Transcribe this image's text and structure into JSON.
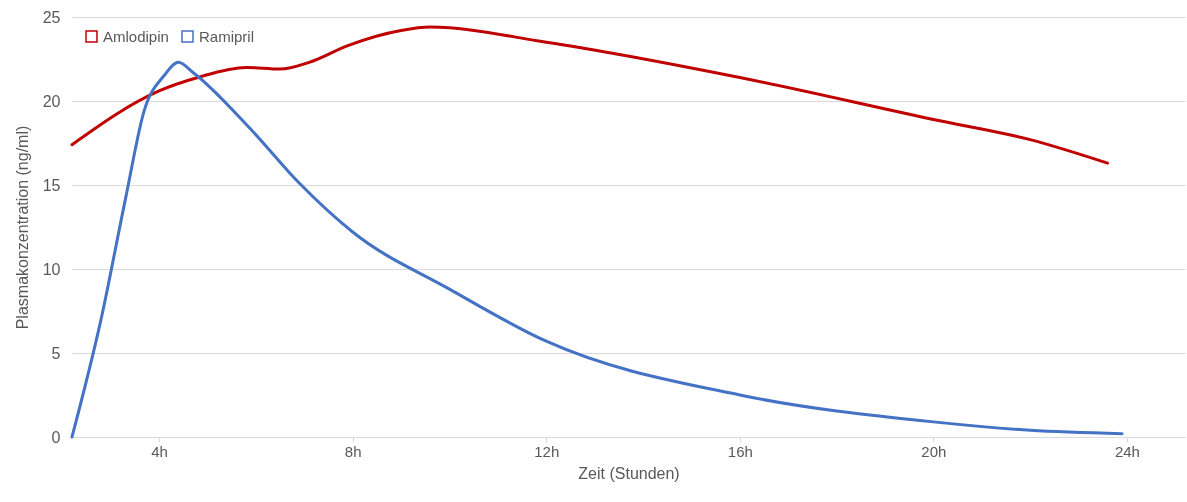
{
  "chart_data": {
    "type": "line",
    "xlabel": "Zeit (Stunden)",
    "ylabel": "Plasmakonzentration (ng/ml)",
    "xlim": [
      2.2,
      25.2
    ],
    "xticks": [
      {
        "value": 4,
        "label": "4h"
      },
      {
        "value": 8,
        "label": "8h"
      },
      {
        "value": 12,
        "label": "12h"
      },
      {
        "value": 16,
        "label": "16h"
      },
      {
        "value": 20,
        "label": "20h"
      },
      {
        "value": 24,
        "label": "24h"
      }
    ],
    "ylim": [
      0,
      25
    ],
    "yticks": [
      0,
      5,
      10,
      15,
      20,
      25
    ],
    "grid": "y",
    "legend": "top left",
    "series": [
      {
        "name": "Amlodipin",
        "color": "#c00000",
        "x": [
          2.2,
          4,
          4.8,
          5.8,
          6.5,
          7.1,
          7.9,
          9,
          9.6,
          12,
          16,
          20,
          22,
          23.6
        ],
        "values": [
          17.4,
          20.6,
          21.4,
          22,
          21.9,
          22.3,
          23.3,
          24.2,
          24.4,
          23.5,
          21.4,
          18.9,
          17.7,
          16.3
        ]
      },
      {
        "name": "Ramipril",
        "color": "#4472c4",
        "x": [
          2.2,
          2.8,
          3.3,
          3.7,
          4.1,
          4.4,
          4.7,
          5.9,
          6.9,
          8,
          10,
          12,
          16,
          20,
          22,
          23.9
        ],
        "values": [
          0,
          7,
          14.1,
          19.5,
          21.5,
          22.3,
          21.7,
          18.3,
          15.1,
          12.2,
          8.8,
          5.7,
          2.5,
          0.9,
          0.4,
          0.2
        ]
      }
    ]
  }
}
